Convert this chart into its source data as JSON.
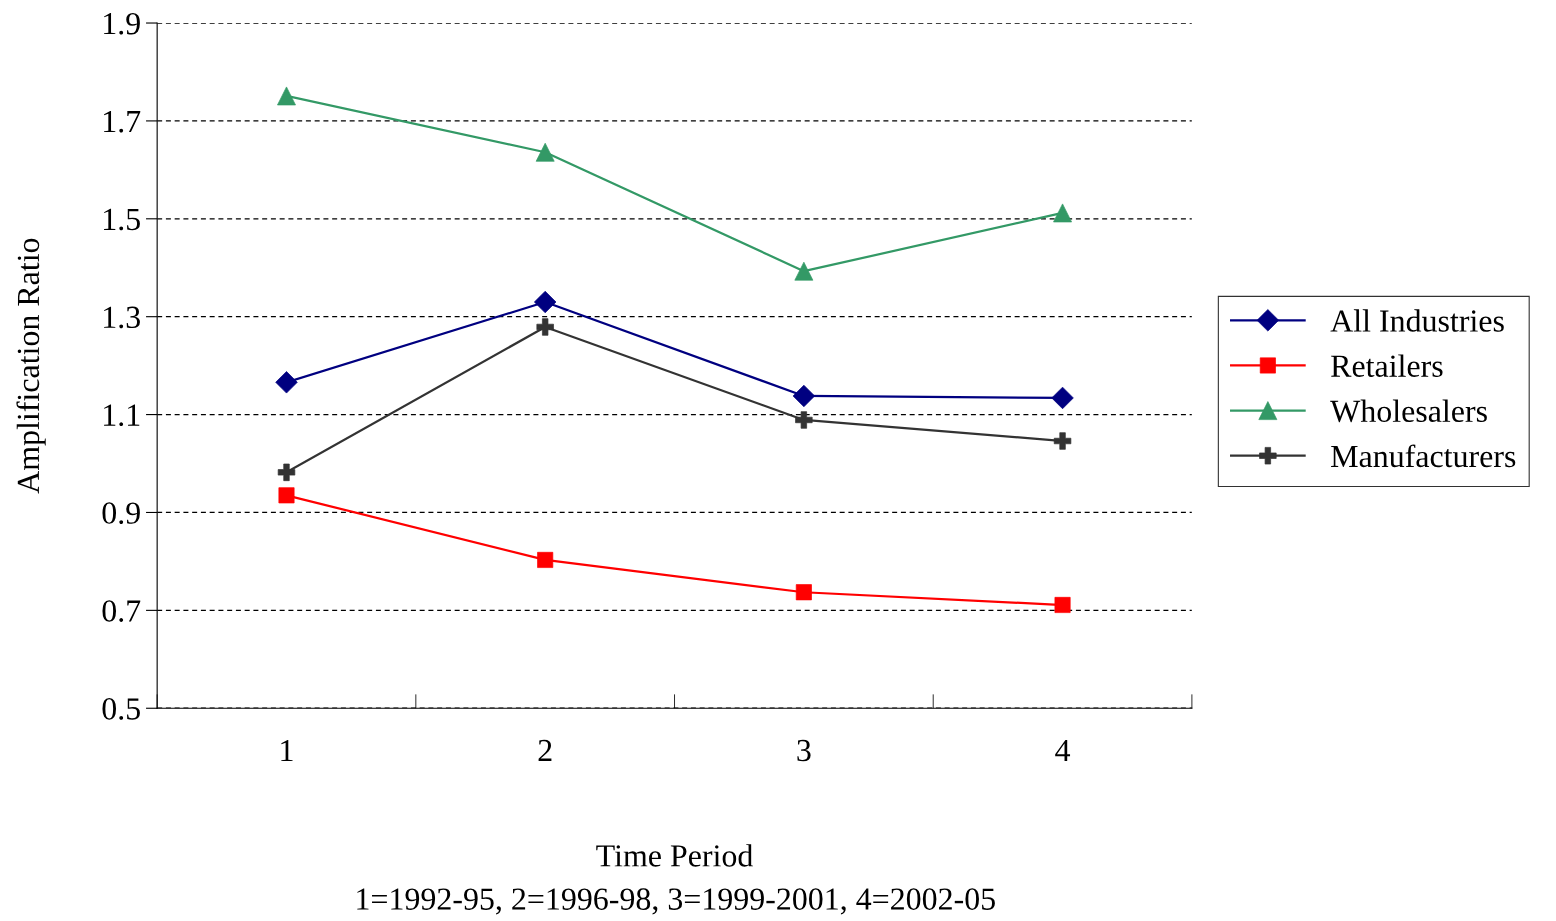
{
  "chart_data": {
    "type": "line",
    "xlabel": "Time Period",
    "ylabel": "Amplification Ratio",
    "annotations": [
      "1=1992-95, 2=1996-98, 3=1999-2001, 4=2002-05"
    ],
    "categories": [
      "1",
      "2",
      "3",
      "4"
    ],
    "series": [
      {
        "name": "All Industries",
        "color": "#000080",
        "marker": "diamond",
        "values": [
          1.166,
          1.33,
          1.138,
          1.134
        ]
      },
      {
        "name": "Retailers",
        "color": "#ff0000",
        "marker": "square",
        "values": [
          0.935,
          0.803,
          0.737,
          0.711
        ]
      },
      {
        "name": "Wholesalers",
        "color": "#339966",
        "marker": "triangle",
        "values": [
          1.751,
          1.636,
          1.393,
          1.512
        ]
      },
      {
        "name": "Manufacturers",
        "color": "#333333",
        "marker": "cross",
        "values": [
          0.982,
          1.279,
          1.089,
          1.046
        ]
      }
    ],
    "ylim": [
      0.5,
      1.9
    ],
    "yticks": [
      0.5,
      0.7,
      0.9,
      1.1,
      1.3,
      1.5,
      1.7,
      1.9
    ],
    "grid": "y",
    "legend": "right",
    "line_style": "solid"
  }
}
